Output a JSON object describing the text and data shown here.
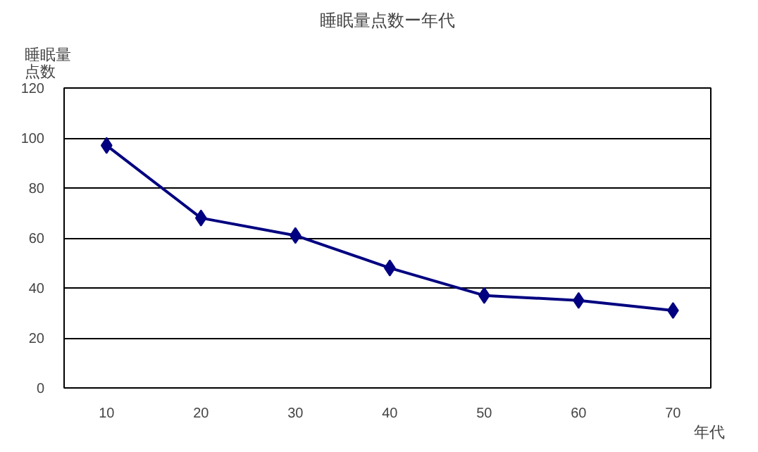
{
  "chart_data": {
    "type": "line",
    "title": "睡眠量点数ー年代",
    "xlabel": "年代",
    "ylabel": "睡眠量点数",
    "categories": [
      "10",
      "20",
      "30",
      "40",
      "50",
      "60",
      "70"
    ],
    "series": [
      {
        "color": "#000080",
        "values": [
          97,
          68,
          61,
          48,
          37,
          35,
          31
        ]
      }
    ],
    "ylim": [
      0,
      120
    ],
    "yticks": [
      0,
      20,
      40,
      60,
      80,
      100,
      120
    ],
    "grid": "y",
    "marker": "diamond",
    "line_style": "solid"
  }
}
